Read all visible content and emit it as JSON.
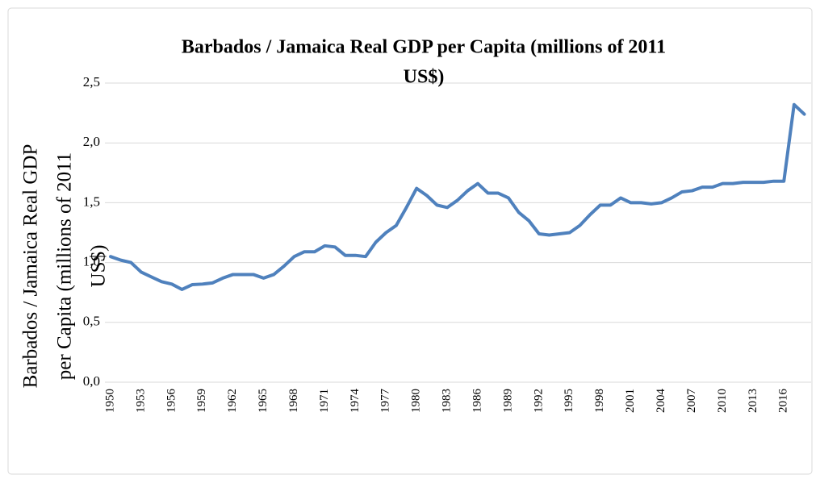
{
  "chart_data": {
    "type": "line",
    "title": [
      "Barbados / Jamaica Real GDP per Capita (millions of 2011",
      "US$)"
    ],
    "ylabel": [
      "Barbados / Jamaica Real GDP",
      "per Capita (millions of 2011",
      "US$)"
    ],
    "categories": [
      "1950",
      null,
      null,
      "1953",
      null,
      null,
      "1956",
      null,
      null,
      "1959",
      null,
      null,
      "1962",
      null,
      null,
      "1965",
      null,
      null,
      "1968",
      null,
      null,
      "1971",
      null,
      null,
      "1974",
      null,
      null,
      "1977",
      null,
      null,
      "1980",
      null,
      null,
      "1983",
      null,
      null,
      "1986",
      null,
      null,
      "1989",
      null,
      null,
      "1992",
      null,
      null,
      "1995",
      null,
      null,
      "1998",
      null,
      null,
      "2001",
      null,
      null,
      "2004",
      null,
      null,
      "2007",
      null,
      null,
      "2010",
      null,
      null,
      "2013",
      null,
      null,
      "2016",
      null,
      null
    ],
    "values": [
      1.05,
      1.02,
      1.0,
      0.92,
      0.88,
      0.84,
      0.82,
      0.775,
      0.815,
      0.82,
      0.83,
      0.87,
      0.9,
      0.9,
      0.9,
      0.87,
      0.9,
      0.97,
      1.05,
      1.09,
      1.09,
      1.14,
      1.13,
      1.06,
      1.06,
      1.05,
      1.17,
      1.25,
      1.31,
      1.46,
      1.62,
      1.56,
      1.48,
      1.46,
      1.52,
      1.6,
      1.66,
      1.58,
      1.58,
      1.54,
      1.42,
      1.35,
      1.24,
      1.23,
      1.24,
      1.25,
      1.31,
      1.4,
      1.48,
      1.48,
      1.54,
      1.5,
      1.5,
      1.49,
      1.5,
      1.54,
      1.59,
      1.6,
      1.63,
      1.63,
      1.66,
      1.66,
      1.67,
      1.67,
      1.67,
      1.68,
      1.68,
      2.32,
      2.24
    ],
    "color": "#4f81bd",
    "ylim": [
      0,
      2.5
    ],
    "yticks": [
      {
        "value": 0,
        "label": "0,0"
      },
      {
        "value": 0.5,
        "label": "0,5"
      },
      {
        "value": 1,
        "label": "1,0"
      },
      {
        "value": 1.5,
        "label": "1,5"
      },
      {
        "value": 2,
        "label": "2,0"
      },
      {
        "value": 2.5,
        "label": "2,5"
      }
    ],
    "grid": true
  }
}
